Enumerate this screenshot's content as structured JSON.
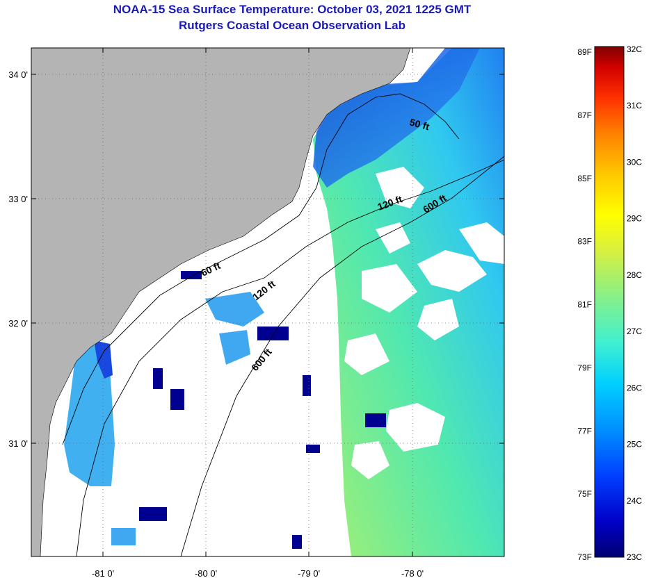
{
  "titles": {
    "line1": "NOAA-15 Sea Surface Temperature:  October 03, 2021 1225 GMT",
    "line2": "Rutgers Coastal Ocean Observation Lab"
  },
  "map": {
    "lon_ticks": [
      {
        "label": "-81 0'"
      },
      {
        "label": "-80 0'"
      },
      {
        "label": "-79 0'"
      },
      {
        "label": "-78 0'"
      }
    ],
    "lat_ticks": [
      {
        "label": "34 0'"
      },
      {
        "label": "33 0'"
      },
      {
        "label": "32 0'"
      },
      {
        "label": "31 0'"
      }
    ],
    "contour_labels": [
      {
        "text": "50 ft"
      },
      {
        "text": "120 ft"
      },
      {
        "text": "600 ft"
      },
      {
        "text": "60 ft"
      },
      {
        "text": "120 ft"
      },
      {
        "text": "600 ft"
      }
    ]
  },
  "colorbar": {
    "fahrenheit": [
      "89F",
      "87F",
      "85F",
      "83F",
      "81F",
      "79F",
      "77F",
      "75F",
      "73F"
    ],
    "celsius": [
      "32C",
      "31C",
      "30C",
      "29C",
      "28C",
      "27C",
      "26C",
      "25C",
      "24C",
      "23C"
    ],
    "colors": [
      "#000070",
      "#0000c8",
      "#0040ff",
      "#0090ff",
      "#00d0ff",
      "#40f0d0",
      "#90f080",
      "#d8f040",
      "#ffff00",
      "#ffc800",
      "#ff8000",
      "#ff3000",
      "#d00000",
      "#800000"
    ]
  }
}
